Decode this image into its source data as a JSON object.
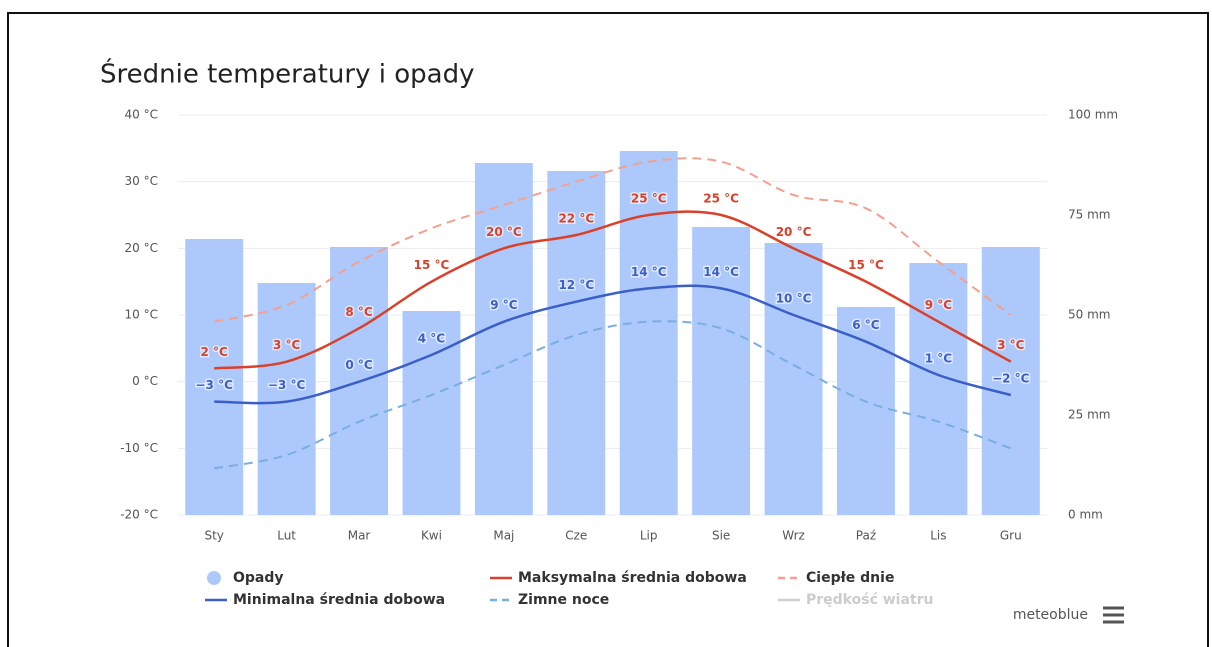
{
  "chart_data": {
    "type": "bar-line",
    "title": "Średnie temperatury i opady",
    "categories": [
      "Sty",
      "Lut",
      "Mar",
      "Kwi",
      "Maj",
      "Cze",
      "Lip",
      "Sie",
      "Wrz",
      "Paź",
      "Lis",
      "Gru"
    ],
    "series": [
      {
        "name": "Opady",
        "color": "#adc9fb",
        "kind": "bar",
        "axis": "y2",
        "values": [
          69,
          58,
          67,
          51,
          88,
          86,
          91,
          72,
          68,
          52,
          63,
          67
        ]
      },
      {
        "name": "Maksymalna średnia dobowa",
        "color": "#d9412a",
        "kind": "line",
        "values": [
          2,
          3,
          8,
          15,
          20,
          22,
          25,
          25,
          20,
          15,
          9,
          3
        ],
        "value_labels": [
          "2 °C",
          "3 °C",
          "8 °C",
          "15 °C",
          "20 °C",
          "22 °C",
          "25 °C",
          "25 °C",
          "20 °C",
          "15 °C",
          "9 °C",
          "3 °C"
        ]
      },
      {
        "name": "Ciepłe dnie",
        "color": "#f4a090",
        "kind": "dashed",
        "values": [
          9,
          11.5,
          18,
          23,
          26.5,
          30,
          33,
          33,
          28,
          26,
          18,
          10
        ]
      },
      {
        "name": "Minimalna średnia dobowa",
        "color": "#3a5fc8",
        "kind": "line",
        "values": [
          -3,
          -3,
          0,
          4,
          9,
          12,
          14,
          14,
          10,
          6,
          1,
          -2
        ],
        "value_labels": [
          "−3 °C",
          "−3 °C",
          "0 °C",
          "4 °C",
          "9 °C",
          "12 °C",
          "14 °C",
          "14 °C",
          "10 °C",
          "6 °C",
          "1 °C",
          "−2 °C"
        ]
      },
      {
        "name": "Zimne noce",
        "color": "#7aaee0",
        "kind": "dashed",
        "values": [
          -13,
          -11,
          -6,
          -2,
          2.5,
          7,
          9,
          8,
          2.5,
          -3,
          -6,
          -10
        ]
      }
    ],
    "hidden_series": [
      {
        "name": "Prędkość wiatru",
        "color": "#d0d0d0"
      }
    ],
    "ylim": [
      -20,
      40
    ],
    "yticks": [
      {
        "value": -20,
        "label": "-20 °C"
      },
      {
        "value": -10,
        "label": "-10 °C"
      },
      {
        "value": 0,
        "label": "0 °C"
      },
      {
        "value": 10,
        "label": "10 °C"
      },
      {
        "value": 20,
        "label": "20 °C"
      },
      {
        "value": 30,
        "label": "30 °C"
      },
      {
        "value": 40,
        "label": "40 °C"
      }
    ],
    "y2lim": [
      0,
      100
    ],
    "y2ticks": [
      {
        "value": 0,
        "label": "0 mm"
      },
      {
        "value": 25,
        "label": "25 mm"
      },
      {
        "value": 50,
        "label": "50 mm"
      },
      {
        "value": 75,
        "label": "75 mm"
      },
      {
        "value": 100,
        "label": "100 mm"
      }
    ],
    "grid": true
  },
  "brand": "meteoblue"
}
